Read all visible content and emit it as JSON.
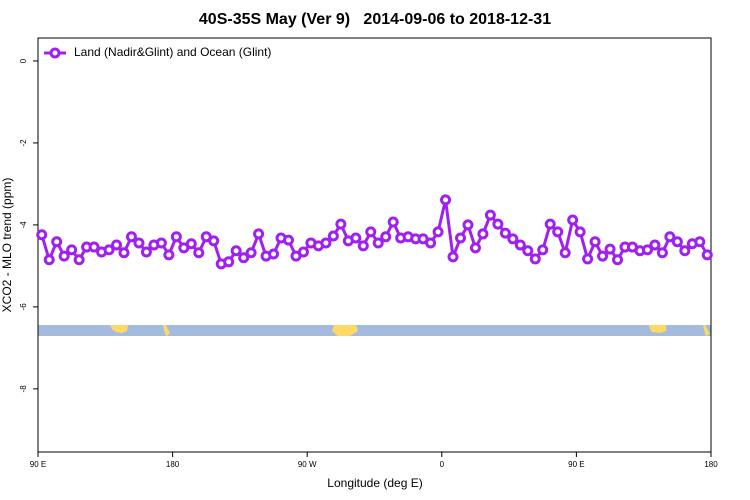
{
  "chart_data": {
    "type": "line",
    "title": "40S-35S May (Ver 9)   2014-09-06 to 2018-12-31",
    "xlabel": "Longitude (deg E)",
    "ylabel": "XCO2 - MLO trend (ppm)",
    "legend": "topleft",
    "xlim": [
      90,
      540
    ],
    "xticks": [
      {
        "value": 90,
        "label": "90 E"
      },
      {
        "value": 180,
        "label": "180"
      },
      {
        "value": 270,
        "label": "90 W"
      },
      {
        "value": 360,
        "label": "0"
      },
      {
        "value": 450,
        "label": "90 E"
      },
      {
        "value": 540,
        "label": "180"
      }
    ],
    "ylim": [
      -9.54,
      0.56
    ],
    "yticks": [
      0,
      -2,
      -4,
      -6,
      -8
    ],
    "x": [
      92.5,
      97.5,
      102.5,
      107.5,
      112.5,
      117.5,
      122.5,
      127.5,
      132.5,
      137.5,
      142.5,
      147.5,
      152.5,
      157.5,
      162.5,
      167.5,
      172.5,
      177.5,
      182.5,
      187.5,
      192.5,
      197.5,
      202.5,
      207.5,
      212.5,
      217.5,
      222.5,
      227.5,
      232.5,
      237.5,
      242.5,
      247.5,
      252.5,
      257.5,
      262.5,
      267.5,
      272.5,
      277.5,
      282.5,
      287.5,
      292.5,
      297.5,
      302.5,
      307.5,
      312.5,
      317.5,
      322.5,
      327.5,
      332.5,
      337.5,
      342.5,
      347.5,
      352.5,
      357.5,
      362.5,
      367.5,
      372.5,
      377.5,
      382.5,
      387.5,
      392.5,
      397.5,
      402.5,
      407.5,
      412.5,
      417.5,
      422.5,
      427.5,
      432.5,
      437.5,
      442.5,
      447.5,
      452.5,
      457.5,
      462.5,
      467.5,
      472.5,
      477.5,
      482.5,
      487.5,
      492.5,
      497.5,
      502.5,
      507.5,
      512.5,
      517.5,
      522.5,
      527.5,
      532.5,
      537.5
    ],
    "series": [
      {
        "name": "Land (Nadir&Glint) and Ocean (Glint)",
        "color": "#a020f0",
        "values": [
          -4.24,
          -4.85,
          -4.41,
          -4.76,
          -4.61,
          -4.85,
          -4.54,
          -4.54,
          -4.66,
          -4.61,
          -4.49,
          -4.68,
          -4.29,
          -4.44,
          -4.66,
          -4.49,
          -4.44,
          -4.73,
          -4.29,
          -4.56,
          -4.46,
          -4.68,
          -4.29,
          -4.39,
          -4.95,
          -4.9,
          -4.63,
          -4.8,
          -4.68,
          -4.22,
          -4.76,
          -4.71,
          -4.32,
          -4.37,
          -4.76,
          -4.66,
          -4.44,
          -4.51,
          -4.44,
          -4.27,
          -3.98,
          -4.39,
          -4.32,
          -4.51,
          -4.17,
          -4.44,
          -4.29,
          -3.93,
          -4.32,
          -4.29,
          -4.34,
          -4.34,
          -4.44,
          -4.17,
          -3.39,
          -4.78,
          -4.32,
          -4.0,
          -4.56,
          -4.22,
          -3.76,
          -3.98,
          -4.2,
          -4.34,
          -4.49,
          -4.63,
          -4.83,
          -4.61,
          -3.98,
          -4.17,
          -4.68,
          -3.88,
          -4.17,
          -4.83,
          -4.41,
          -4.76,
          -4.59,
          -4.85,
          -4.54,
          -4.54,
          -4.63,
          -4.61,
          -4.49,
          -4.68,
          -4.29,
          -4.41,
          -4.63,
          -4.46,
          -4.41,
          -4.73
        ]
      }
    ]
  }
}
